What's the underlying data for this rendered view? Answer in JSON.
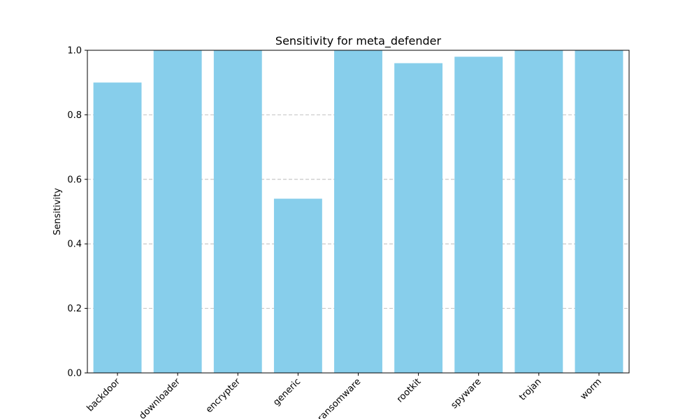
{
  "chart_data": {
    "type": "bar",
    "title": "Sensitivity for meta_defender",
    "xlabel": "",
    "ylabel": "Sensitivity",
    "ylim": [
      0,
      1.0
    ],
    "yticks": [
      0.0,
      0.2,
      0.4,
      0.6,
      0.8,
      1.0
    ],
    "ytick_labels": [
      "0.0",
      "0.2",
      "0.4",
      "0.6",
      "0.8",
      "1.0"
    ],
    "grid": "y-dashed",
    "bar_color": "#87CEEB",
    "categories": [
      "backdoor",
      "downloader",
      "encrypter",
      "generic",
      "ransomware",
      "rootkit",
      "spyware",
      "trojan",
      "worm"
    ],
    "values": [
      0.9,
      1.0,
      1.0,
      0.54,
      1.0,
      0.96,
      0.98,
      1.0,
      1.0
    ]
  }
}
